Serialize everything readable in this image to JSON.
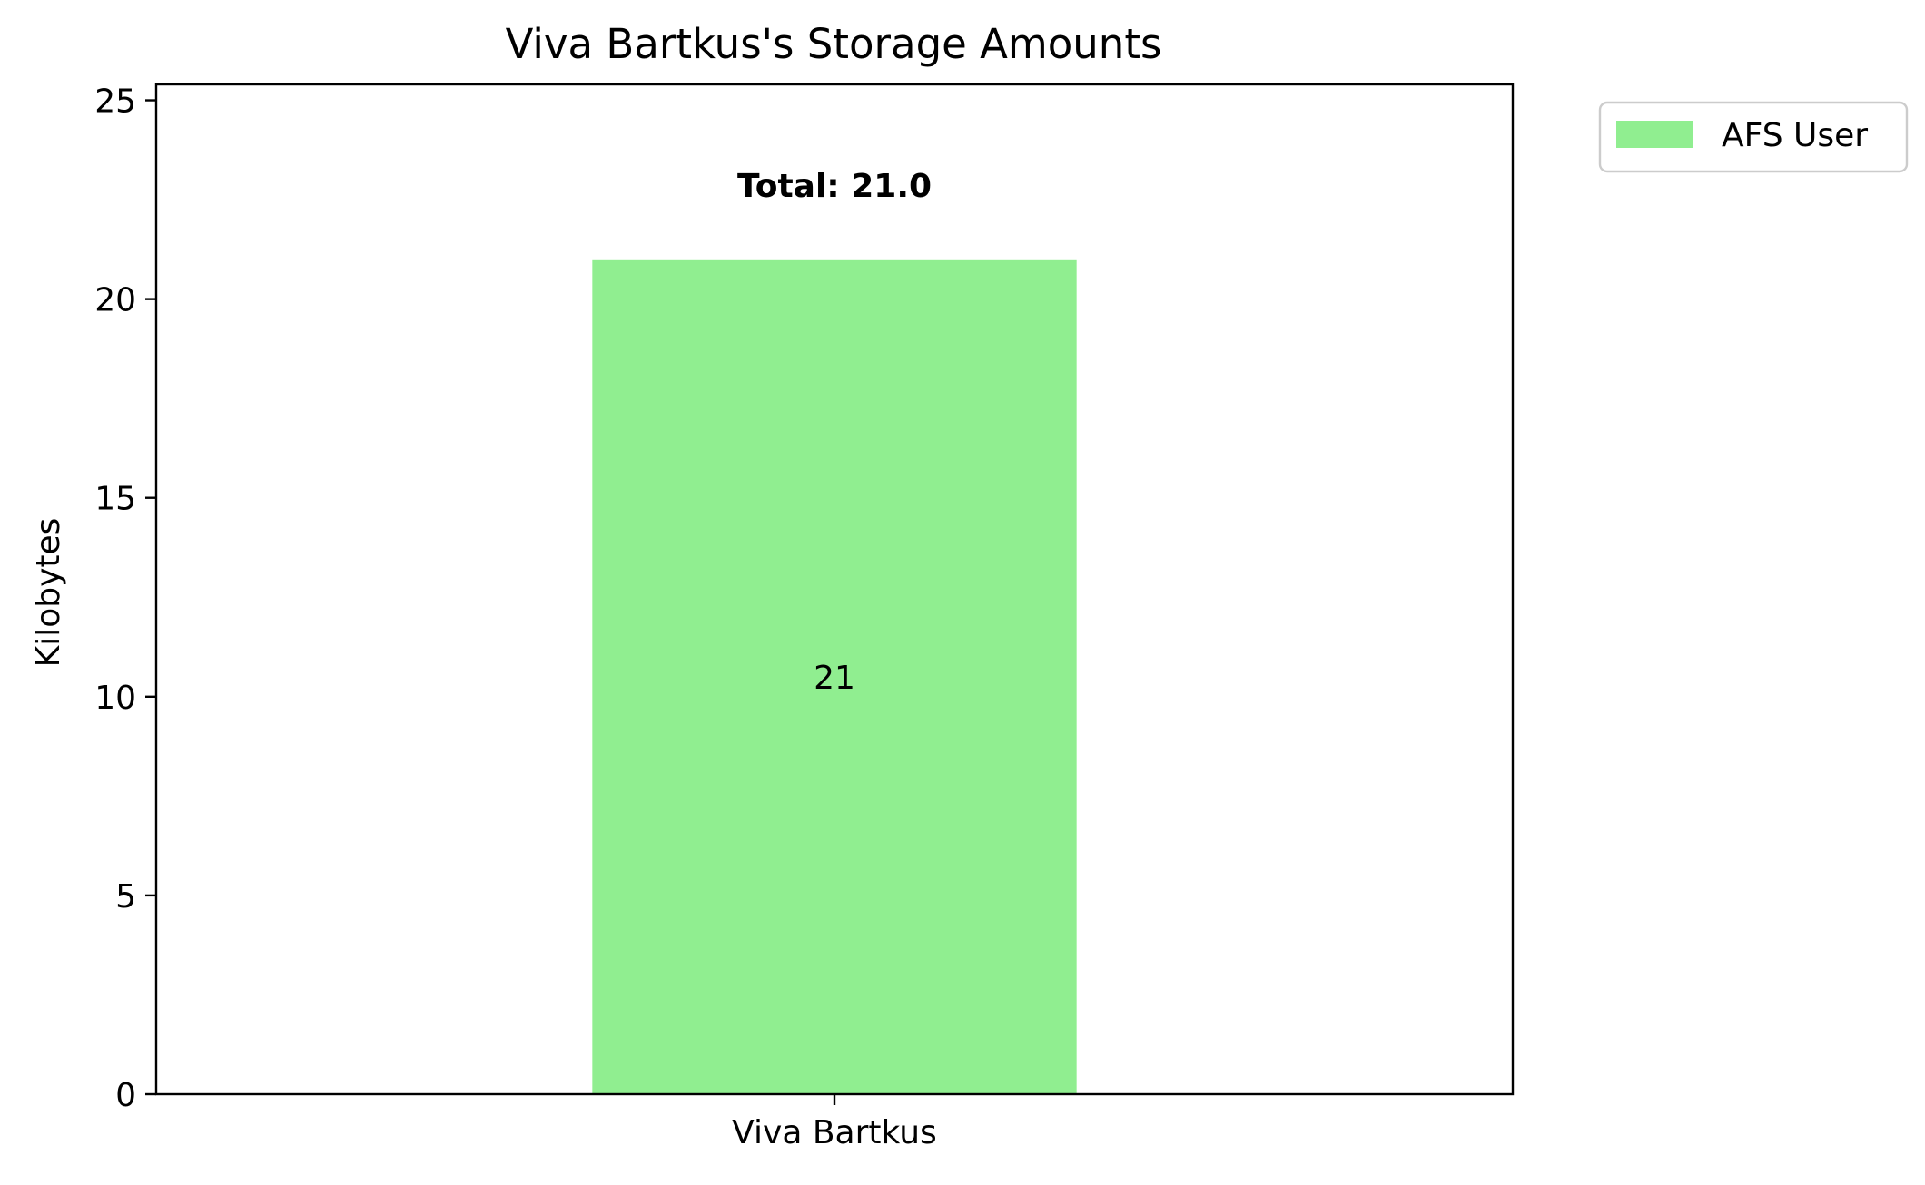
{
  "chart_data": {
    "type": "bar",
    "title": "Viva Bartkus's Storage Amounts",
    "xlabel": "",
    "ylabel": "Kilobytes",
    "categories": [
      "Viva Bartkus"
    ],
    "series": [
      {
        "name": "AFS User",
        "values": [
          21
        ],
        "color": "#90EE90",
        "labels": [
          "21"
        ]
      }
    ],
    "totals": [
      21.0
    ],
    "total_labels": [
      "Total: 21.0"
    ],
    "ylim": [
      0,
      25.4
    ],
    "yticks": [
      0,
      5,
      10,
      15,
      20,
      25
    ],
    "ytick_labels": [
      "0",
      "5",
      "10",
      "15",
      "20",
      "25"
    ],
    "grid": false,
    "legend": {
      "placement": "outside-top-right",
      "entries": [
        "AFS User"
      ]
    }
  }
}
